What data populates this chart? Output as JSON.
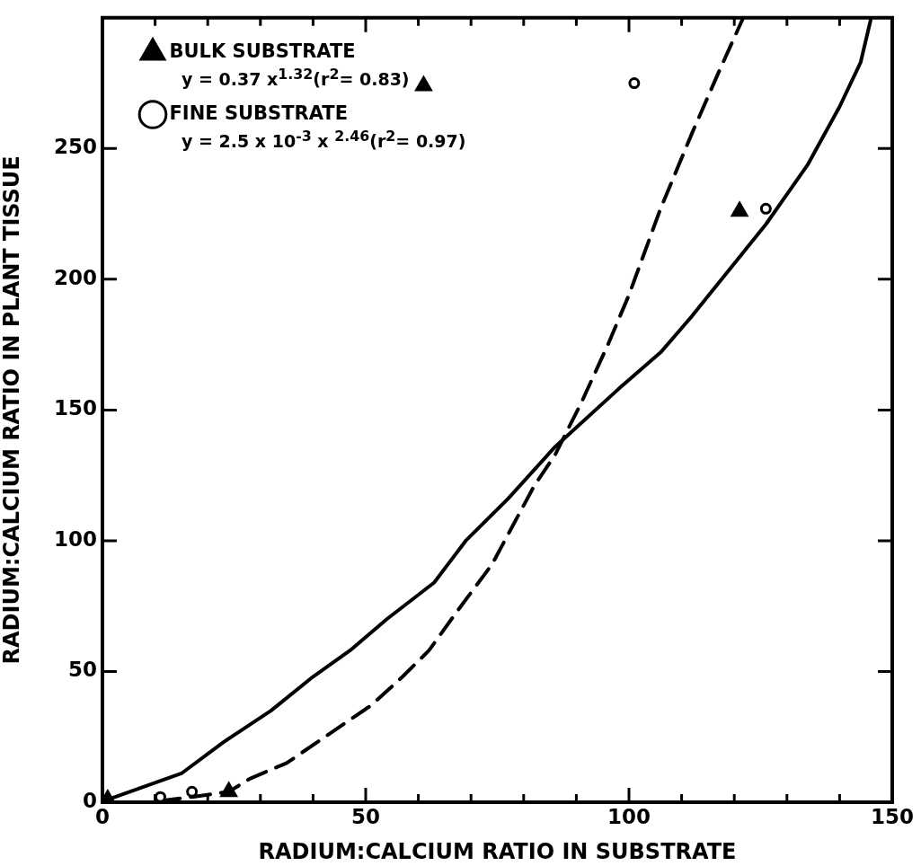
{
  "chart_data": {
    "type": "scatter",
    "xlabel": "RADIUM:CALCIUM RATIO IN SUBSTRATE",
    "ylabel": "RADIUM:CALCIUM RATIO IN PLANT TISSUE",
    "xlim": [
      0,
      150
    ],
    "ylim": [
      0,
      300
    ],
    "xticks": [
      0,
      {
        "value": 10,
        "label": null
      },
      {
        "value": 20,
        "label": null
      },
      {
        "value": 30,
        "label": null
      },
      {
        "value": 40,
        "label": null
      },
      50,
      {
        "value": 60,
        "label": null
      },
      {
        "value": 70,
        "label": null
      },
      {
        "value": 80,
        "label": null
      },
      {
        "value": 90,
        "label": null
      },
      100,
      {
        "value": 110,
        "label": null
      },
      {
        "value": 120,
        "label": null
      },
      {
        "value": 130,
        "label": null
      },
      {
        "value": 140,
        "label": null
      },
      150
    ],
    "yticks": [
      0,
      50,
      100,
      150,
      200,
      250
    ],
    "legend": "top left",
    "series": [
      {
        "name": "BULK SUBSTRATE",
        "type": "scatter",
        "marker": "triangle",
        "color": "#000000",
        "x": [
          1,
          24,
          61,
          121
        ],
        "values": [
          1,
          4,
          274,
          226
        ]
      },
      {
        "name": "FINE SUBSTRATE",
        "type": "scatter",
        "marker": "circle",
        "color": "#000000",
        "x": [
          11,
          17,
          101,
          126
        ],
        "values": [
          2,
          4,
          275,
          227
        ]
      },
      {
        "type": "line",
        "line_style": "solid",
        "color": "#000000",
        "x": [
          1,
          15,
          23,
          32,
          40,
          47,
          54,
          63,
          69,
          77,
          86,
          98,
          106,
          112,
          126,
          134,
          140,
          144,
          146
        ],
        "values": [
          1,
          11,
          23,
          35,
          48,
          58,
          70,
          84,
          100,
          116,
          136,
          158,
          172,
          186,
          221,
          244,
          266,
          283,
          300
        ]
      },
      {
        "type": "line",
        "line_style": "dashed",
        "color": "#000000",
        "x": [
          11,
          17,
          24,
          28,
          35,
          43,
          51,
          57,
          62,
          67,
          74,
          82,
          86,
          91,
          96,
          100,
          106,
          112,
          117,
          121.7
        ],
        "values": [
          0.5,
          2,
          4,
          9,
          15,
          26,
          37,
          48,
          58,
          72,
          91,
          121,
          133,
          153,
          175,
          194,
          227,
          256,
          279,
          300
        ]
      }
    ],
    "annotations": [
      "y = 0.37 x$^{1.32}$(r$^{2}$= 0.83)",
      "y = 2.5 x 10$^{-3}$ x $^{2.46}$(r$^{2}$= 0.97)"
    ]
  }
}
